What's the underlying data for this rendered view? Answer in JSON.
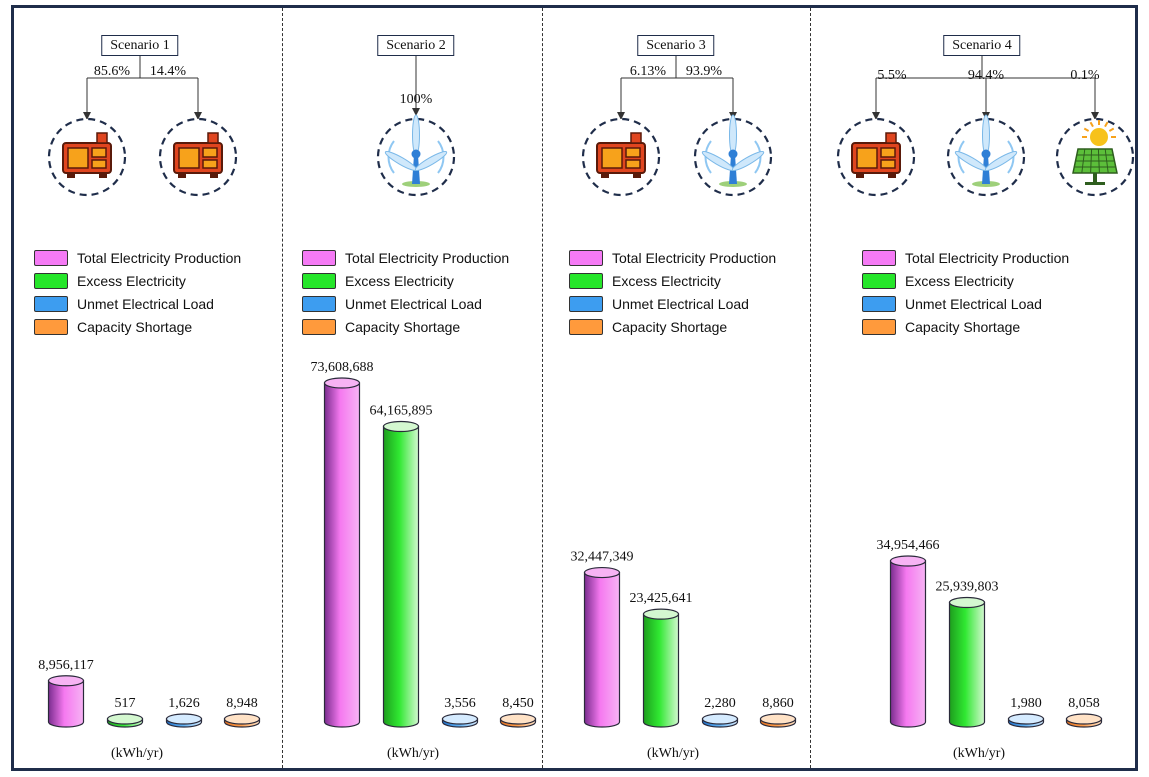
{
  "legend": [
    {
      "label": "Total Electricity Production",
      "color": "#f57af5"
    },
    {
      "label": "Excess Electricity",
      "color": "#26e62a"
    },
    {
      "label": "Unmet Electrical Load",
      "color": "#3d9df0"
    },
    {
      "label": "Capacity Shortage",
      "color": "#ff9a3c"
    }
  ],
  "unit_label": "(kWh/yr)",
  "scenarios": [
    {
      "title": "Scenario 1",
      "sources": [
        {
          "icon": "generator-icon",
          "share": "85.6%"
        },
        {
          "icon": "generator-icon",
          "share": "14.4%"
        }
      ]
    },
    {
      "title": "Scenario 2",
      "sources": [
        {
          "icon": "wind-turbine-icon",
          "share": "100%"
        }
      ]
    },
    {
      "title": "Scenario 3",
      "sources": [
        {
          "icon": "generator-icon",
          "share": "6.13%"
        },
        {
          "icon": "wind-turbine-icon",
          "share": "93.9%"
        }
      ]
    },
    {
      "title": "Scenario 4",
      "sources": [
        {
          "icon": "generator-icon",
          "share": "5.5%"
        },
        {
          "icon": "wind-turbine-icon",
          "share": "94.4%"
        },
        {
          "icon": "solar-panel-icon",
          "share": "0.1%"
        }
      ]
    }
  ],
  "chart_data": {
    "type": "bar",
    "categories": [
      "Scenario 1",
      "Scenario 2",
      "Scenario 3",
      "Scenario 4"
    ],
    "series": [
      {
        "name": "Total Electricity Production",
        "values": [
          8956117,
          73608688,
          32447349,
          34954466
        ],
        "labels": [
          "8,956,117",
          "73,608,688",
          "32,447,349",
          "34,954,466"
        ]
      },
      {
        "name": "Excess Electricity",
        "values": [
          517,
          64165895,
          23425641,
          25939803
        ],
        "labels": [
          "517",
          "64,165,895",
          "23,425,641",
          "25,939,803"
        ]
      },
      {
        "name": "Unmet Electrical Load",
        "values": [
          1626,
          3556,
          2280,
          1980
        ],
        "labels": [
          "1,626",
          "3,556",
          "2,280",
          "1,980"
        ]
      },
      {
        "name": "Capacity Shortage",
        "values": [
          8948,
          8450,
          8860,
          8058
        ],
        "labels": [
          "8,948",
          "8,450",
          "8,860",
          "8,058"
        ]
      }
    ],
    "ylabel": "(kWh/yr)"
  }
}
